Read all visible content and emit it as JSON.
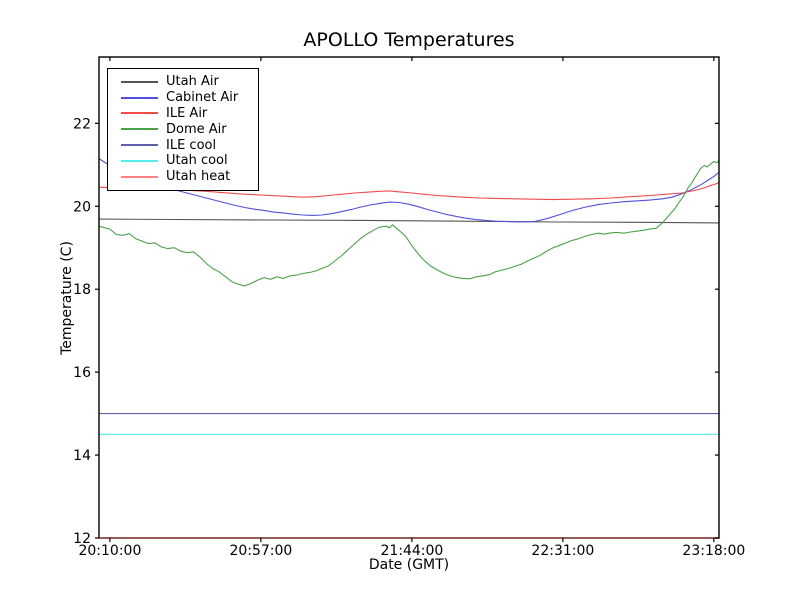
{
  "window": {
    "background": "#ffffff"
  },
  "chart_data": {
    "type": "line",
    "title": "APOLLO Temperatures",
    "xlabel": "Date (GMT)",
    "ylabel": "Temperature (C)",
    "grid": false,
    "legend_position": "upper left",
    "x_tick_labels": [
      "20:10:00",
      "20:57:00",
      "21:44:00",
      "22:31:00",
      "23:18:00"
    ],
    "x_tick_minutes": [
      0,
      47,
      94,
      141,
      188
    ],
    "x_range_minutes": [
      -3.4,
      189.6
    ],
    "y_ticks": [
      12,
      14,
      16,
      18,
      20,
      22
    ],
    "ylim": [
      12,
      23.6
    ],
    "axis_color": "#000000",
    "series": [
      {
        "name": "Utah Air",
        "color": "#555555",
        "on_axis": false,
        "points": [
          [
            -3.4,
            19.69
          ],
          [
            20,
            19.68
          ],
          [
            50,
            19.67
          ],
          [
            80,
            19.66
          ],
          [
            110,
            19.64
          ],
          [
            140,
            19.62
          ],
          [
            170,
            19.61
          ],
          [
            189.6,
            19.6
          ]
        ]
      },
      {
        "name": "Cabinet Air",
        "color": "#5050dd",
        "on_axis": false,
        "points": [
          [
            -3.4,
            21.15
          ],
          [
            0,
            20.98
          ],
          [
            3,
            20.88
          ],
          [
            6,
            20.78
          ],
          [
            9,
            20.68
          ],
          [
            12,
            20.6
          ],
          [
            15,
            20.52
          ],
          [
            18,
            20.45
          ],
          [
            21,
            20.38
          ],
          [
            24,
            20.32
          ],
          [
            27,
            20.26
          ],
          [
            30,
            20.2
          ],
          [
            33,
            20.14
          ],
          [
            36,
            20.08
          ],
          [
            39,
            20.02
          ],
          [
            42,
            19.97
          ],
          [
            45,
            19.93
          ],
          [
            48,
            19.9
          ],
          [
            51,
            19.86
          ],
          [
            54,
            19.84
          ],
          [
            57,
            19.81
          ],
          [
            60,
            19.79
          ],
          [
            63,
            19.78
          ],
          [
            66,
            19.79
          ],
          [
            69,
            19.82
          ],
          [
            72,
            19.87
          ],
          [
            75,
            19.92
          ],
          [
            78,
            19.98
          ],
          [
            81,
            20.03
          ],
          [
            84,
            20.07
          ],
          [
            87,
            20.1
          ],
          [
            90,
            20.09
          ],
          [
            93,
            20.05
          ],
          [
            96,
            19.99
          ],
          [
            99,
            19.92
          ],
          [
            102,
            19.86
          ],
          [
            105,
            19.8
          ],
          [
            108,
            19.75
          ],
          [
            111,
            19.71
          ],
          [
            114,
            19.68
          ],
          [
            117,
            19.66
          ],
          [
            120,
            19.64
          ],
          [
            124,
            19.63
          ],
          [
            128,
            19.62
          ],
          [
            132,
            19.63
          ],
          [
            136,
            19.7
          ],
          [
            140,
            19.8
          ],
          [
            144,
            19.9
          ],
          [
            148,
            19.98
          ],
          [
            152,
            20.04
          ],
          [
            156,
            20.08
          ],
          [
            160,
            20.11
          ],
          [
            164,
            20.13
          ],
          [
            168,
            20.15
          ],
          [
            172,
            20.18
          ],
          [
            175,
            20.22
          ],
          [
            178,
            20.3
          ],
          [
            181,
            20.4
          ],
          [
            184,
            20.52
          ],
          [
            186,
            20.62
          ],
          [
            188,
            20.72
          ],
          [
            189.6,
            20.82
          ]
        ]
      },
      {
        "name": "ILE Air",
        "color": "#f04a4a",
        "on_axis": false,
        "points": [
          [
            -3.4,
            20.46
          ],
          [
            0,
            20.45
          ],
          [
            5,
            20.44
          ],
          [
            10,
            20.43
          ],
          [
            15,
            20.42
          ],
          [
            20,
            20.4
          ],
          [
            25,
            20.38
          ],
          [
            30,
            20.36
          ],
          [
            35,
            20.33
          ],
          [
            40,
            20.3
          ],
          [
            45,
            20.28
          ],
          [
            50,
            20.26
          ],
          [
            55,
            20.24
          ],
          [
            60,
            20.22
          ],
          [
            64,
            20.23
          ],
          [
            68,
            20.26
          ],
          [
            72,
            20.29
          ],
          [
            76,
            20.32
          ],
          [
            80,
            20.34
          ],
          [
            84,
            20.36
          ],
          [
            87,
            20.37
          ],
          [
            90,
            20.35
          ],
          [
            94,
            20.32
          ],
          [
            98,
            20.29
          ],
          [
            102,
            20.26
          ],
          [
            106,
            20.24
          ],
          [
            110,
            20.22
          ],
          [
            115,
            20.2
          ],
          [
            120,
            20.19
          ],
          [
            126,
            20.18
          ],
          [
            132,
            20.17
          ],
          [
            138,
            20.16
          ],
          [
            144,
            20.17
          ],
          [
            150,
            20.18
          ],
          [
            156,
            20.2
          ],
          [
            162,
            20.23
          ],
          [
            168,
            20.26
          ],
          [
            173,
            20.29
          ],
          [
            178,
            20.32
          ],
          [
            182,
            20.38
          ],
          [
            185,
            20.44
          ],
          [
            187,
            20.5
          ],
          [
            189,
            20.55
          ],
          [
            189.6,
            20.58
          ]
        ]
      },
      {
        "name": "Dome Air",
        "color": "#4aa24a",
        "on_axis": false,
        "points": [
          [
            -3.4,
            19.52
          ],
          [
            0,
            19.45
          ],
          [
            2,
            19.32
          ],
          [
            4,
            19.3
          ],
          [
            6,
            19.34
          ],
          [
            8,
            19.22
          ],
          [
            10,
            19.16
          ],
          [
            12,
            19.1
          ],
          [
            14,
            19.12
          ],
          [
            16,
            19.02
          ],
          [
            18,
            18.98
          ],
          [
            20,
            19.0
          ],
          [
            22,
            18.92
          ],
          [
            24,
            18.88
          ],
          [
            26,
            18.9
          ],
          [
            28,
            18.78
          ],
          [
            30,
            18.62
          ],
          [
            32,
            18.5
          ],
          [
            34,
            18.42
          ],
          [
            36,
            18.3
          ],
          [
            38,
            18.18
          ],
          [
            40,
            18.12
          ],
          [
            42,
            18.08
          ],
          [
            44,
            18.14
          ],
          [
            46,
            18.22
          ],
          [
            48,
            18.28
          ],
          [
            50,
            18.24
          ],
          [
            52,
            18.3
          ],
          [
            54,
            18.26
          ],
          [
            56,
            18.32
          ],
          [
            58,
            18.34
          ],
          [
            60,
            18.38
          ],
          [
            62,
            18.4
          ],
          [
            64,
            18.44
          ],
          [
            66,
            18.5
          ],
          [
            68,
            18.56
          ],
          [
            70,
            18.68
          ],
          [
            72,
            18.8
          ],
          [
            74,
            18.94
          ],
          [
            76,
            19.08
          ],
          [
            78,
            19.22
          ],
          [
            80,
            19.33
          ],
          [
            82,
            19.42
          ],
          [
            84,
            19.5
          ],
          [
            86,
            19.52
          ],
          [
            87,
            19.48
          ],
          [
            88,
            19.55
          ],
          [
            90,
            19.42
          ],
          [
            92,
            19.28
          ],
          [
            94,
            19.05
          ],
          [
            96,
            18.85
          ],
          [
            98,
            18.68
          ],
          [
            100,
            18.55
          ],
          [
            102,
            18.46
          ],
          [
            104,
            18.38
          ],
          [
            106,
            18.32
          ],
          [
            108,
            18.28
          ],
          [
            110,
            18.26
          ],
          [
            112,
            18.25
          ],
          [
            114,
            18.3
          ],
          [
            116,
            18.32
          ],
          [
            118,
            18.35
          ],
          [
            120,
            18.42
          ],
          [
            122,
            18.46
          ],
          [
            124,
            18.5
          ],
          [
            126,
            18.55
          ],
          [
            128,
            18.6
          ],
          [
            130,
            18.68
          ],
          [
            132,
            18.75
          ],
          [
            134,
            18.82
          ],
          [
            136,
            18.92
          ],
          [
            138,
            19.0
          ],
          [
            140,
            19.06
          ],
          [
            142,
            19.12
          ],
          [
            144,
            19.18
          ],
          [
            146,
            19.22
          ],
          [
            148,
            19.28
          ],
          [
            150,
            19.32
          ],
          [
            152,
            19.35
          ],
          [
            154,
            19.33
          ],
          [
            156,
            19.36
          ],
          [
            158,
            19.37
          ],
          [
            160,
            19.35
          ],
          [
            162,
            19.38
          ],
          [
            164,
            19.4
          ],
          [
            166,
            19.42
          ],
          [
            168,
            19.45
          ],
          [
            170,
            19.47
          ],
          [
            172,
            19.6
          ],
          [
            174,
            19.78
          ],
          [
            176,
            19.95
          ],
          [
            177,
            20.08
          ],
          [
            178,
            20.18
          ],
          [
            179,
            20.3
          ],
          [
            180,
            20.45
          ],
          [
            181,
            20.55
          ],
          [
            182,
            20.68
          ],
          [
            183,
            20.8
          ],
          [
            184,
            20.92
          ],
          [
            185,
            20.98
          ],
          [
            186,
            20.95
          ],
          [
            187,
            21.02
          ],
          [
            188,
            21.08
          ],
          [
            189,
            21.05
          ],
          [
            189.6,
            21.12
          ]
        ]
      },
      {
        "name": "ILE cool",
        "color": "#6060a8",
        "on_axis": false,
        "points": [
          [
            -3.4,
            15.0
          ],
          [
            189.6,
            15.0
          ]
        ]
      },
      {
        "name": "Utah cool",
        "color": "#55eded",
        "on_axis": false,
        "points": [
          [
            -3.4,
            14.5
          ],
          [
            189.6,
            14.5
          ]
        ]
      },
      {
        "name": "Utah heat",
        "color": "#ff8080",
        "on_axis": true,
        "points": [
          [
            -3.4,
            12.0
          ],
          [
            189.6,
            12.0
          ]
        ]
      }
    ]
  }
}
